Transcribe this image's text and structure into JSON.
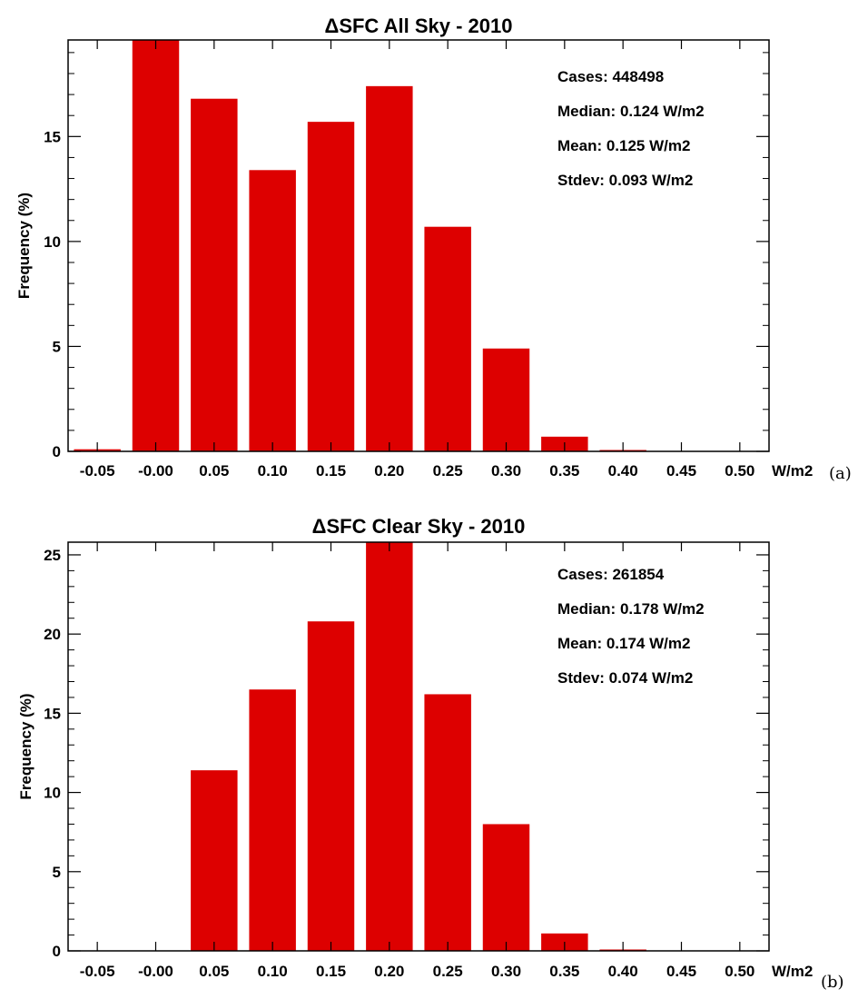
{
  "chart_data": [
    {
      "type": "bar",
      "panel_label": "(a)",
      "title": "ΔSFC All Sky - 2010",
      "ylabel": "Frequency (%)",
      "xunit": "W/m2",
      "categories": [
        "-0.05",
        "-0.00",
        "0.05",
        "0.10",
        "0.15",
        "0.20",
        "0.25",
        "0.30",
        "0.35",
        "0.40",
        "0.45",
        "0.50"
      ],
      "values": [
        0.1,
        19.8,
        16.8,
        13.4,
        15.7,
        17.4,
        10.7,
        4.9,
        0.7,
        0.05,
        0,
        0
      ],
      "ylim": [
        0,
        19.6
      ],
      "yticks": [
        0,
        5,
        10,
        15
      ],
      "bar_color": "#dd0000",
      "stats": [
        {
          "label": "Cases:",
          "value": "448498"
        },
        {
          "label": "Median:",
          "value": "0.124 W/m2"
        },
        {
          "label": "Mean:",
          "value": "0.125 W/m2"
        },
        {
          "label": "Stdev:",
          "value": "0.093 W/m2"
        }
      ]
    },
    {
      "type": "bar",
      "panel_label": "(b)",
      "title": "ΔSFC Clear Sky - 2010",
      "ylabel": "Frequency (%)",
      "xunit": "W/m2",
      "categories": [
        "-0.05",
        "-0.00",
        "0.05",
        "0.10",
        "0.15",
        "0.20",
        "0.25",
        "0.30",
        "0.35",
        "0.40",
        "0.45",
        "0.50"
      ],
      "values": [
        0,
        0,
        11.4,
        16.5,
        20.8,
        25.8,
        16.2,
        8.0,
        1.1,
        0.05,
        0,
        0
      ],
      "ylim": [
        0,
        25.8
      ],
      "yticks": [
        0,
        5,
        10,
        15,
        20,
        25
      ],
      "bar_color": "#dd0000",
      "stats": [
        {
          "label": "Cases:",
          "value": "261854"
        },
        {
          "label": "Median:",
          "value": "0.178 W/m2"
        },
        {
          "label": "Mean:",
          "value": "0.174 W/m2"
        },
        {
          "label": "Stdev:",
          "value": "0.074 W/m2"
        }
      ]
    }
  ]
}
